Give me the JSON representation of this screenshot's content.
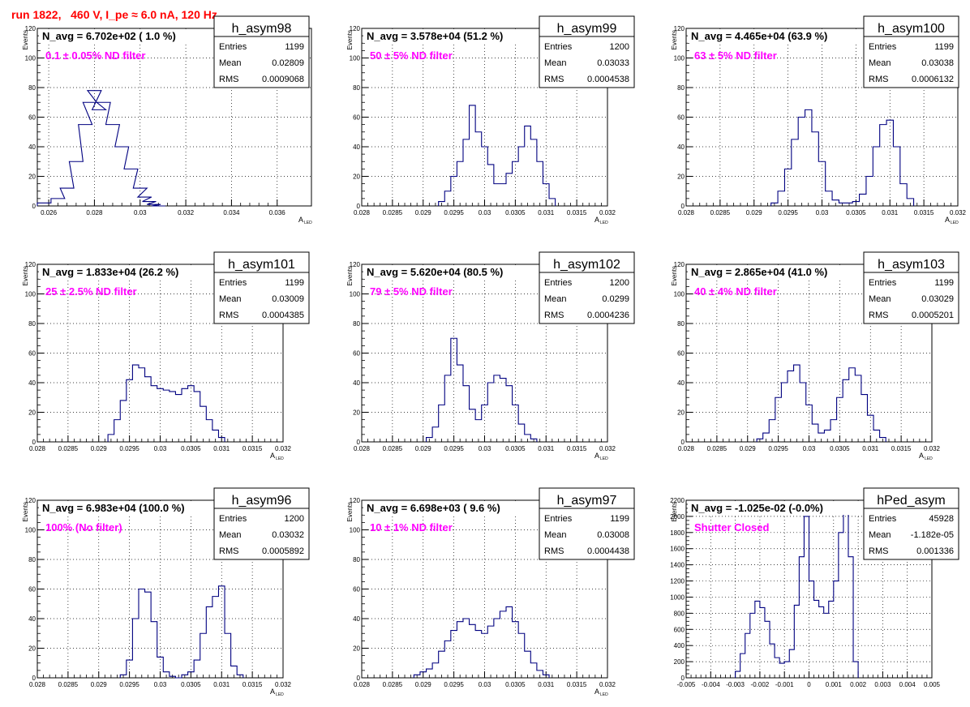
{
  "page_title": "run 1822,   460 V, I_pe ≈ 6.0 nA, 120 Hz",
  "colors": {
    "hist_line": "#000080",
    "title_red": "#ff0000",
    "label_magenta": "#ff00ff",
    "grid": "#000000"
  },
  "chart_data": [
    {
      "type": "histogram",
      "name": "h_asym98",
      "navg": "N_avg = 6.702e+02 ( 1.0 %)",
      "label": "0.1 ± 0.05% ND filter",
      "stats": [
        [
          "Entries",
          "1199"
        ],
        [
          "Mean",
          "0.02809"
        ],
        [
          "RMS",
          "0.0009068"
        ]
      ],
      "ylabel": "Events",
      "xlabel": "A",
      "xlabel_sub": "LED",
      "xlim": [
        0.0255,
        0.0375
      ],
      "ylim": [
        0,
        120
      ],
      "xticks": [
        0.026,
        0.028,
        0.03,
        0.032,
        0.034,
        0.036
      ],
      "xticklabels": [
        "0.026",
        "0.028",
        "0.03",
        "0.032",
        "0.034",
        "0.036"
      ],
      "yticks": [
        0,
        20,
        40,
        60,
        80,
        100,
        120
      ],
      "yticklabels": [
        "0",
        "20",
        "40",
        "60",
        "80",
        "100",
        "120"
      ],
      "bins_x": [
        0.0258,
        0.0264,
        0.0268,
        0.0272,
        0.0276,
        0.0278,
        0.028,
        0.0282,
        0.0284,
        0.0288,
        0.0292,
        0.0296,
        0.03,
        0.0302,
        0.0304,
        0.0306,
        0.0308
      ],
      "bins_y": [
        2,
        5,
        12,
        30,
        55,
        70,
        78,
        65,
        70,
        55,
        40,
        25,
        12,
        6,
        3,
        1,
        0
      ]
    },
    {
      "type": "histogram",
      "name": "h_asym99",
      "navg": "N_avg = 3.578e+04 (51.2 %)",
      "label": "50 ± 5% ND filter",
      "stats": [
        [
          "Entries",
          "1200"
        ],
        [
          "Mean",
          "0.03033"
        ],
        [
          "RMS",
          "0.0004538"
        ]
      ],
      "ylabel": "Events",
      "xlabel": "A",
      "xlabel_sub": "LED",
      "xlim": [
        0.028,
        0.032
      ],
      "ylim": [
        0,
        120
      ],
      "xticks": [
        0.028,
        0.0285,
        0.029,
        0.0295,
        0.03,
        0.0305,
        0.031,
        0.0315,
        0.032
      ],
      "xticklabels": [
        "0.028",
        "0.0285",
        "0.029",
        "0.0295",
        "0.03",
        "0.0305",
        "0.031",
        "0.0315",
        "0.032"
      ],
      "yticks": [
        0,
        20,
        40,
        60,
        80,
        100,
        120
      ],
      "yticklabels": [
        "0",
        "20",
        "40",
        "60",
        "80",
        "100",
        "120"
      ],
      "bins_x": [
        0.0293,
        0.0294,
        0.0295,
        0.0296,
        0.0297,
        0.0298,
        0.0299,
        0.03,
        0.0301,
        0.0302,
        0.0303,
        0.0304,
        0.0305,
        0.0306,
        0.0307,
        0.0308,
        0.0309,
        0.031,
        0.0311
      ],
      "bins_y": [
        3,
        10,
        20,
        30,
        45,
        68,
        50,
        40,
        28,
        15,
        15,
        22,
        30,
        40,
        54,
        45,
        30,
        15,
        5
      ]
    },
    {
      "type": "histogram",
      "name": "h_asym100",
      "navg": "N_avg = 4.465e+04 (63.9 %)",
      "label": "63 ± 5% ND filter",
      "stats": [
        [
          "Entries",
          "1199"
        ],
        [
          "Mean",
          "0.03038"
        ],
        [
          "RMS",
          "0.0006132"
        ]
      ],
      "ylabel": "Events",
      "xlabel": "A",
      "xlabel_sub": "LED",
      "xlim": [
        0.028,
        0.032
      ],
      "ylim": [
        0,
        120
      ],
      "xticks": [
        0.028,
        0.0285,
        0.029,
        0.0295,
        0.03,
        0.0305,
        0.031,
        0.0315,
        0.032
      ],
      "xticklabels": [
        "0.028",
        "0.0285",
        "0.029",
        "0.0295",
        "0.03",
        "0.0305",
        "0.031",
        "0.0315",
        "0.032"
      ],
      "yticks": [
        0,
        20,
        40,
        60,
        80,
        100,
        120
      ],
      "yticklabels": [
        "0",
        "20",
        "40",
        "60",
        "80",
        "100",
        "120"
      ],
      "bins_x": [
        0.0293,
        0.0294,
        0.0295,
        0.0296,
        0.0297,
        0.0298,
        0.0299,
        0.03,
        0.0301,
        0.0302,
        0.0303,
        0.0304,
        0.0305,
        0.0306,
        0.0307,
        0.0308,
        0.0309,
        0.031,
        0.0311,
        0.0312,
        0.0313
      ],
      "bins_y": [
        2,
        10,
        25,
        45,
        60,
        65,
        50,
        30,
        10,
        4,
        2,
        2,
        3,
        8,
        20,
        40,
        55,
        58,
        40,
        15,
        5
      ]
    },
    {
      "type": "histogram",
      "name": "h_asym101",
      "navg": "N_avg = 1.833e+04 (26.2 %)",
      "label": "25 ± 2.5% ND filter",
      "stats": [
        [
          "Entries",
          "1199"
        ],
        [
          "Mean",
          "0.03009"
        ],
        [
          "RMS",
          "0.0004385"
        ]
      ],
      "ylabel": "Events",
      "xlabel": "A",
      "xlabel_sub": "LED",
      "xlim": [
        0.028,
        0.032
      ],
      "ylim": [
        0,
        120
      ],
      "xticks": [
        0.028,
        0.0285,
        0.029,
        0.0295,
        0.03,
        0.0305,
        0.031,
        0.0315,
        0.032
      ],
      "xticklabels": [
        "0.028",
        "0.0285",
        "0.029",
        "0.0295",
        "0.03",
        "0.0305",
        "0.031",
        "0.0315",
        "0.032"
      ],
      "yticks": [
        0,
        20,
        40,
        60,
        80,
        100,
        120
      ],
      "yticklabels": [
        "0",
        "20",
        "40",
        "60",
        "80",
        "100",
        "120"
      ],
      "bins_x": [
        0.0292,
        0.0293,
        0.0294,
        0.0295,
        0.0296,
        0.0297,
        0.0298,
        0.0299,
        0.03,
        0.0301,
        0.0302,
        0.0303,
        0.0304,
        0.0305,
        0.0306,
        0.0307,
        0.0308,
        0.0309,
        0.031
      ],
      "bins_y": [
        5,
        15,
        28,
        42,
        52,
        50,
        44,
        38,
        36,
        35,
        34,
        32,
        36,
        38,
        34,
        24,
        15,
        8,
        3
      ]
    },
    {
      "type": "histogram",
      "name": "h_asym102",
      "navg": "N_avg = 5.620e+04 (80.5 %)",
      "label": "79 ± 5% ND filter",
      "stats": [
        [
          "Entries",
          "1200"
        ],
        [
          "Mean",
          "0.0299"
        ],
        [
          "RMS",
          "0.0004236"
        ]
      ],
      "ylabel": "Events",
      "xlabel": "A",
      "xlabel_sub": "LED",
      "xlim": [
        0.028,
        0.032
      ],
      "ylim": [
        0,
        120
      ],
      "xticks": [
        0.028,
        0.0285,
        0.029,
        0.0295,
        0.03,
        0.0305,
        0.031,
        0.0315,
        0.032
      ],
      "xticklabels": [
        "0.028",
        "0.0285",
        "0.029",
        "0.0295",
        "0.03",
        "0.0305",
        "0.031",
        "0.0315",
        "0.032"
      ],
      "yticks": [
        0,
        20,
        40,
        60,
        80,
        100,
        120
      ],
      "yticklabels": [
        "0",
        "20",
        "40",
        "60",
        "80",
        "100",
        "120"
      ],
      "bins_x": [
        0.0291,
        0.0292,
        0.0293,
        0.0294,
        0.0295,
        0.0296,
        0.0297,
        0.0298,
        0.0299,
        0.03,
        0.0301,
        0.0302,
        0.0303,
        0.0304,
        0.0305,
        0.0306,
        0.0307,
        0.0308
      ],
      "bins_y": [
        3,
        10,
        25,
        45,
        70,
        52,
        38,
        22,
        15,
        25,
        40,
        45,
        43,
        38,
        25,
        12,
        5,
        2
      ]
    },
    {
      "type": "histogram",
      "name": "h_asym103",
      "navg": "N_avg = 2.865e+04 (41.0 %)",
      "label": "40 ± 4% ND filter",
      "stats": [
        [
          "Entries",
          "1199"
        ],
        [
          "Mean",
          "0.03029"
        ],
        [
          "RMS",
          "0.0005201"
        ]
      ],
      "ylabel": "Events",
      "xlabel": "A",
      "xlabel_sub": "LED",
      "xlim": [
        0.028,
        0.032
      ],
      "ylim": [
        0,
        120
      ],
      "xticks": [
        0.028,
        0.0285,
        0.029,
        0.0295,
        0.03,
        0.0305,
        0.031,
        0.0315,
        0.032
      ],
      "xticklabels": [
        "0.028",
        "0.0285",
        "0.029",
        "0.0295",
        "0.03",
        "0.0305",
        "0.031",
        "0.0315",
        "0.032"
      ],
      "yticks": [
        0,
        20,
        40,
        60,
        80,
        100,
        120
      ],
      "yticklabels": [
        "0",
        "20",
        "40",
        "60",
        "80",
        "100",
        "120"
      ],
      "bins_x": [
        0.0292,
        0.0293,
        0.0294,
        0.0295,
        0.0296,
        0.0297,
        0.0298,
        0.0299,
        0.03,
        0.0301,
        0.0302,
        0.0303,
        0.0304,
        0.0305,
        0.0306,
        0.0307,
        0.0308,
        0.0309,
        0.031,
        0.0311,
        0.0312
      ],
      "bins_y": [
        2,
        6,
        15,
        30,
        40,
        48,
        52,
        40,
        25,
        12,
        6,
        8,
        15,
        30,
        42,
        50,
        45,
        32,
        18,
        8,
        3
      ]
    },
    {
      "type": "histogram",
      "name": "h_asym96",
      "navg": "N_avg = 6.983e+04 (100.0 %)",
      "label": "100% (No filter)",
      "stats": [
        [
          "Entries",
          "1200"
        ],
        [
          "Mean",
          "0.03032"
        ],
        [
          "RMS",
          "0.0005892"
        ]
      ],
      "ylabel": "Events",
      "xlabel": "A",
      "xlabel_sub": "LED",
      "xlim": [
        0.028,
        0.032
      ],
      "ylim": [
        0,
        120
      ],
      "xticks": [
        0.028,
        0.0285,
        0.029,
        0.0295,
        0.03,
        0.0305,
        0.031,
        0.0315,
        0.032
      ],
      "xticklabels": [
        "0.028",
        "0.0285",
        "0.029",
        "0.0295",
        "0.03",
        "0.0305",
        "0.031",
        "0.0315",
        "0.032"
      ],
      "yticks": [
        0,
        20,
        40,
        60,
        80,
        100,
        120
      ],
      "yticklabels": [
        "0",
        "20",
        "40",
        "60",
        "80",
        "100",
        "120"
      ],
      "bins_x": [
        0.0294,
        0.0295,
        0.0296,
        0.0297,
        0.0298,
        0.0299,
        0.03,
        0.0301,
        0.0302,
        0.0303,
        0.0304,
        0.0305,
        0.0306,
        0.0307,
        0.0308,
        0.0309,
        0.031,
        0.0311,
        0.0312,
        0.0313
      ],
      "bins_y": [
        2,
        12,
        40,
        60,
        58,
        38,
        14,
        4,
        1,
        0,
        2,
        4,
        12,
        30,
        48,
        55,
        62,
        30,
        8,
        2
      ]
    },
    {
      "type": "histogram",
      "name": "h_asym97",
      "navg": "N_avg = 6.698e+03 ( 9.6 %)",
      "label": "10 ± 1% ND filter",
      "stats": [
        [
          "Entries",
          "1199"
        ],
        [
          "Mean",
          "0.03008"
        ],
        [
          "RMS",
          "0.0004438"
        ]
      ],
      "ylabel": "Events",
      "xlabel": "A",
      "xlabel_sub": "LED",
      "xlim": [
        0.028,
        0.032
      ],
      "ylim": [
        0,
        120
      ],
      "xticks": [
        0.028,
        0.0285,
        0.029,
        0.0295,
        0.03,
        0.0305,
        0.031,
        0.0315,
        0.032
      ],
      "xticklabels": [
        "0.028",
        "0.0285",
        "0.029",
        "0.0295",
        "0.03",
        "0.0305",
        "0.031",
        "0.0315",
        "0.032"
      ],
      "yticks": [
        0,
        20,
        40,
        60,
        80,
        100,
        120
      ],
      "yticklabels": [
        "0",
        "20",
        "40",
        "60",
        "80",
        "100",
        "120"
      ],
      "bins_x": [
        0.0289,
        0.029,
        0.0291,
        0.0292,
        0.0293,
        0.0294,
        0.0295,
        0.0296,
        0.0297,
        0.0298,
        0.0299,
        0.03,
        0.0301,
        0.0302,
        0.0303,
        0.0304,
        0.0305,
        0.0306,
        0.0307,
        0.0308,
        0.0309,
        0.031
      ],
      "bins_y": [
        2,
        4,
        6,
        10,
        18,
        25,
        32,
        38,
        40,
        36,
        32,
        30,
        35,
        40,
        45,
        48,
        38,
        30,
        18,
        10,
        5,
        2
      ]
    },
    {
      "type": "histogram",
      "name": "hPed_asym",
      "navg": "N_avg = -1.025e-02 (-0.0%)",
      "label": "Shutter Closed",
      "stats": [
        [
          "Entries",
          "45928"
        ],
        [
          "Mean",
          "-1.182e-05"
        ],
        [
          "RMS",
          "0.001336"
        ]
      ],
      "ylabel": "Events",
      "xlabel": "",
      "xlabel_sub": "",
      "xlim": [
        -0.005,
        0.005
      ],
      "ylim": [
        0,
        2200
      ],
      "xticks": [
        -0.005,
        -0.004,
        -0.003,
        -0.002,
        -0.001,
        0,
        0.001,
        0.002,
        0.003,
        0.004,
        0.005
      ],
      "xticklabels": [
        "-0.005",
        "-0.004",
        "-0.003",
        "-0.002",
        "-0.001",
        "0",
        "0.001",
        "0.002",
        "0.003",
        "0.004",
        "0.005"
      ],
      "yticks": [
        0,
        200,
        400,
        600,
        800,
        1000,
        1200,
        1400,
        1600,
        1800,
        2000,
        2200
      ],
      "yticklabels": [
        "0",
        "200",
        "400",
        "600",
        "800",
        "1000",
        "1200",
        "1400",
        "1600",
        "1800",
        "2000",
        "2200"
      ],
      "bins_x": [
        -0.0029,
        -0.0027,
        -0.0025,
        -0.0023,
        -0.0021,
        -0.0019,
        -0.0017,
        -0.0015,
        -0.0013,
        -0.0011,
        -0.0009,
        -0.0007,
        -0.0005,
        -0.0003,
        -0.0001,
        0.0001,
        0.0003,
        0.0005,
        0.0007,
        0.0009,
        0.0011,
        0.0013,
        0.0015,
        0.0017,
        0.0019
      ],
      "bins_y": [
        80,
        300,
        550,
        800,
        950,
        870,
        700,
        420,
        250,
        180,
        200,
        350,
        900,
        1500,
        2000,
        1200,
        960,
        880,
        800,
        950,
        1200,
        1800,
        2150,
        1500,
        200
      ]
    }
  ]
}
